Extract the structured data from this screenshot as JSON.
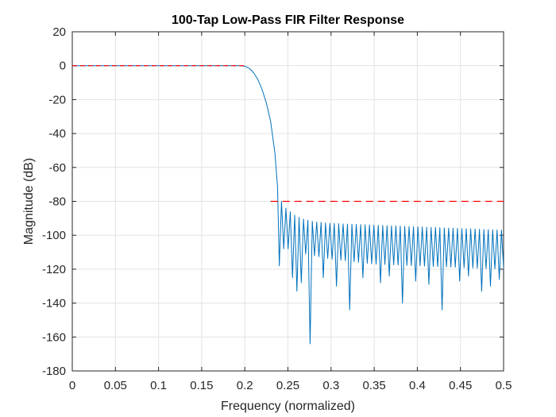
{
  "chart_data": {
    "type": "line",
    "title": "100-Tap Low-Pass FIR Filter Response",
    "xlabel": "Frequency (normalized)",
    "ylabel": "Magnitude (dB)",
    "xlim": [
      0,
      0.5
    ],
    "ylim": [
      -180,
      20
    ],
    "x_ticks": [
      "0",
      "0.05",
      "0.1",
      "0.15",
      "0.2",
      "0.25",
      "0.3",
      "0.35",
      "0.4",
      "0.45",
      "0.5"
    ],
    "x_tick_values": [
      0,
      0.05,
      0.1,
      0.15,
      0.2,
      0.25,
      0.3,
      0.35,
      0.4,
      0.45,
      0.5
    ],
    "y_ticks": [
      "20",
      "0",
      "-20",
      "-40",
      "-60",
      "-80",
      "-100",
      "-120",
      "-140",
      "-160",
      "-180"
    ],
    "y_tick_values": [
      20,
      0,
      -20,
      -40,
      -60,
      -80,
      -100,
      -120,
      -140,
      -160,
      -180
    ],
    "grid": true,
    "series": [
      {
        "style": "solid",
        "color": "#0072BD",
        "passband": {
          "x": [
            0,
            0.195
          ],
          "y": [
            0,
            0
          ]
        },
        "transition": {
          "x": [
            0.195,
            0.2,
            0.205,
            0.21,
            0.215,
            0.22,
            0.225,
            0.23,
            0.235,
            0.238,
            0.24
          ],
          "y": [
            0,
            -0.3,
            -1.5,
            -4,
            -8,
            -14,
            -22,
            -33,
            -52,
            -72,
            -118
          ]
        },
        "stopband": {
          "start": 0.24,
          "end": 0.5,
          "lobe_width": 0.0051,
          "peaks": [
            [
              0.2425,
              -80
            ],
            [
              0.2475,
              -84
            ],
            [
              0.2525,
              -86
            ],
            [
              0.2575,
              -88
            ],
            [
              0.265,
              -90
            ],
            [
              0.28,
              -92
            ],
            [
              0.3,
              -93
            ],
            [
              0.35,
              -94
            ],
            [
              0.4,
              -95
            ],
            [
              0.45,
              -96
            ],
            [
              0.5,
              -97
            ]
          ],
          "nulls": [
            [
              0.25,
              -108
            ],
            [
              0.26,
              -110
            ],
            [
              0.3,
              -114
            ],
            [
              0.35,
              -117
            ],
            [
              0.4,
              -118
            ],
            [
              0.5,
              -120
            ]
          ],
          "deep_nulls": [
            [
              0.2405,
              -117
            ],
            [
              0.2555,
              -125
            ],
            [
              0.2605,
              -133
            ],
            [
              0.2655,
              -128
            ],
            [
              0.2758,
              -164
            ],
            [
              0.2912,
              -125
            ],
            [
              0.308,
              -130
            ],
            [
              0.3233,
              -144
            ],
            [
              0.339,
              -125
            ],
            [
              0.355,
              -128
            ],
            [
              0.365,
              -124
            ],
            [
              0.3812,
              -140
            ],
            [
              0.398,
              -127
            ],
            [
              0.413,
              -129
            ],
            [
              0.4312,
              -144
            ],
            [
              0.447,
              -127
            ],
            [
              0.457,
              -124
            ],
            [
              0.4722,
              -133
            ],
            [
              0.4872,
              -130
            ],
            [
              0.4925,
              -126
            ]
          ]
        }
      },
      {
        "style": "dashed",
        "color": "#FF0000",
        "segments": [
          {
            "x": [
              0,
              0.2
            ],
            "y": [
              0,
              0
            ]
          },
          {
            "x": [
              0.23,
              0.5
            ],
            "y": [
              -80,
              -80
            ]
          }
        ]
      }
    ]
  }
}
